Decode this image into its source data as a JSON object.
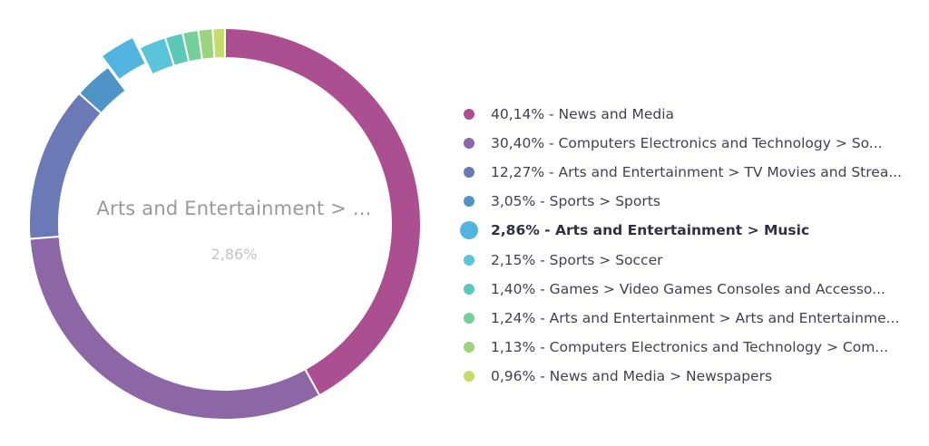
{
  "chart_data": {
    "type": "pie",
    "variant": "donut",
    "center": {
      "label": "Arts and Entertainment > ...",
      "value": "2,86%"
    },
    "highlighted_index": 4,
    "legend_position": "right",
    "slices": [
      {
        "label": "40,14% - News and Media",
        "value": 40.14,
        "color": "#ab4f90"
      },
      {
        "label": "30,40% - Computers Electronics and Technology > So...",
        "value": 30.4,
        "color": "#8c66a5"
      },
      {
        "label": "12,27% - Arts and Entertainment > TV Movies and Strea...",
        "value": 12.27,
        "color": "#6b7ab6"
      },
      {
        "label": "3,05% - Sports > Sports",
        "value": 3.05,
        "color": "#4f94c6"
      },
      {
        "label": "2,86% - Arts and Entertainment > Music",
        "value": 2.86,
        "color": "#53b4e0"
      },
      {
        "label": "2,15% - Sports > Soccer",
        "value": 2.15,
        "color": "#5ac5d8"
      },
      {
        "label": "1,40% - Games > Video Games Consoles and Accesso...",
        "value": 1.4,
        "color": "#5cc9b8"
      },
      {
        "label": "1,24% - Arts and Entertainment > Arts and Entertainme...",
        "value": 1.24,
        "color": "#74cf98"
      },
      {
        "label": "1,13% - Computers Electronics and Technology > Com...",
        "value": 1.13,
        "color": "#9bd47f"
      },
      {
        "label": "0,96% - News and Media > Newspapers",
        "value": 0.96,
        "color": "#c4dc6b"
      }
    ]
  }
}
